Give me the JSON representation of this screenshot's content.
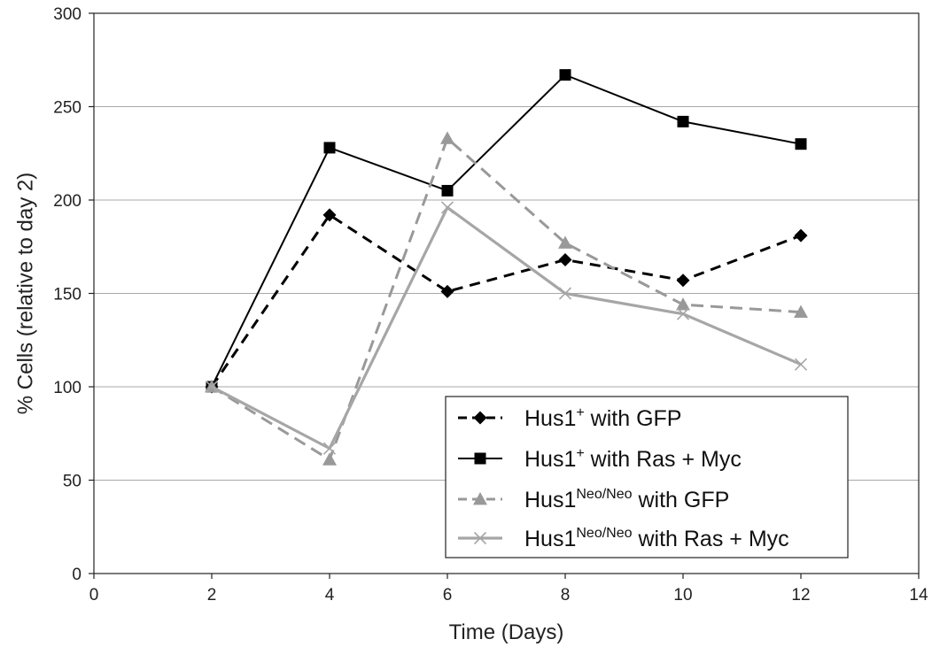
{
  "chart_data": {
    "type": "line",
    "title": "",
    "xlabel": "Time (Days)",
    "ylabel": "% Cells (relative to day 2)",
    "xlim": [
      0,
      14
    ],
    "ylim": [
      0,
      300
    ],
    "xticks": [
      0,
      2,
      4,
      6,
      8,
      10,
      12,
      14
    ],
    "yticks": [
      0,
      50,
      100,
      150,
      200,
      250,
      300
    ],
    "grid": {
      "horizontal": true,
      "vertical": false
    },
    "legend_position": "bottom-right",
    "series": [
      {
        "name_parts": {
          "base": "Hus1",
          "sup": "+",
          "rest": " with GFP"
        },
        "color": "#000000",
        "dashed": true,
        "marker": "diamond",
        "points": [
          [
            2,
            100
          ],
          [
            4,
            192
          ],
          [
            6,
            151
          ],
          [
            8,
            168
          ],
          [
            10,
            157
          ],
          [
            12,
            181
          ]
        ]
      },
      {
        "name_parts": {
          "base": "Hus1",
          "sup": "+",
          "rest": " with Ras + Myc"
        },
        "color": "#000000",
        "dashed": false,
        "marker": "square",
        "points": [
          [
            2,
            100
          ],
          [
            4,
            228
          ],
          [
            6,
            205
          ],
          [
            8,
            267
          ],
          [
            10,
            242
          ],
          [
            12,
            230
          ]
        ]
      },
      {
        "name_parts": {
          "base": "Hus1",
          "sup": "Neo/Neo",
          "rest": " with GFP"
        },
        "color": "#999999",
        "dashed": true,
        "marker": "triangle",
        "points": [
          [
            2,
            100
          ],
          [
            4,
            61
          ],
          [
            6,
            233
          ],
          [
            8,
            177
          ],
          [
            10,
            144
          ],
          [
            12,
            140
          ]
        ]
      },
      {
        "name_parts": {
          "base": "Hus1",
          "sup": "Neo/Neo",
          "rest": " with Ras + Myc"
        },
        "color": "#a6a6a6",
        "dashed": false,
        "marker": "x",
        "points": [
          [
            2,
            100
          ],
          [
            4,
            67
          ],
          [
            6,
            196
          ],
          [
            8,
            150
          ],
          [
            10,
            139
          ],
          [
            12,
            112
          ]
        ]
      }
    ]
  }
}
